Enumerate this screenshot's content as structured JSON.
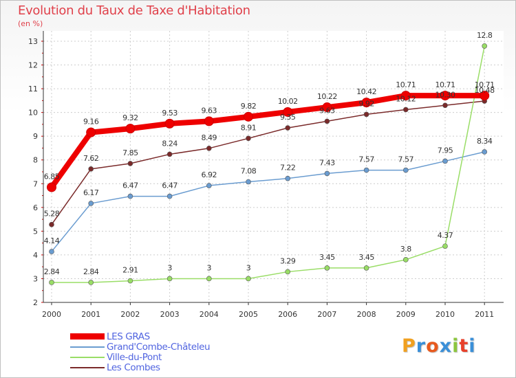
{
  "header": {
    "title": "Evolution du Taux de Taxe d'Habitation",
    "subtitle": "(en %)"
  },
  "brand": {
    "text": "Proxiti",
    "colors": [
      "#f0a020",
      "#3a8fd8",
      "#e85a1e",
      "#3a8fd8",
      "#8cc63f",
      "#e8402a",
      "#3a8fd8"
    ]
  },
  "chart_data": {
    "type": "line",
    "title": "Evolution du Taux de Taxe d'Habitation",
    "ylabel": "(en %)",
    "xlabel": "",
    "x": [
      "2000",
      "2001",
      "2002",
      "2003",
      "2004",
      "2005",
      "2006",
      "2007",
      "2008",
      "2009",
      "2010",
      "2011"
    ],
    "ylim": [
      2,
      13
    ],
    "yticks": [
      "2",
      "3",
      "4",
      "5",
      "6",
      "7",
      "8",
      "9",
      "10",
      "11",
      "12",
      "13"
    ],
    "grid": true,
    "legend_position": "bottom-left",
    "series": [
      {
        "name": "Les Combes",
        "color": "#7a2a2a",
        "values": [
          5.28,
          7.62,
          7.85,
          8.24,
          8.49,
          8.91,
          9.35,
          9.63,
          9.92,
          10.12,
          10.3,
          10.48
        ],
        "labels": [
          "5.28",
          "7.62",
          "7.85",
          "8.24",
          "8.49",
          "8.91",
          "9.35",
          "9.63",
          "9.92",
          "10.12",
          "10.30",
          "10.48"
        ]
      },
      {
        "name": "Grand'Combe-Châteleu",
        "color": "#6a9cd0",
        "values": [
          4.14,
          6.17,
          6.47,
          6.47,
          6.92,
          7.08,
          7.22,
          7.43,
          7.57,
          7.57,
          7.95,
          8.34
        ],
        "labels": [
          "4.14",
          "6.17",
          "6.47",
          "6.47",
          "6.92",
          "7.08",
          "7.22",
          "7.43",
          "7.57",
          "7.57",
          "7.95",
          "8.34"
        ]
      },
      {
        "name": "Ville-du-Pont",
        "color": "#99dd66",
        "values": [
          2.84,
          2.84,
          2.91,
          3,
          3,
          3,
          3.29,
          3.45,
          3.45,
          3.8,
          4.37,
          12.8
        ],
        "labels": [
          "2.84",
          "2.84",
          "2.91",
          "3",
          "3",
          "3",
          "3.29",
          "3.45",
          "3.45",
          "3.8",
          "4.37",
          "12.8"
        ]
      },
      {
        "name": "LES GRAS",
        "color": "#ee0000",
        "values": [
          6.85,
          9.16,
          9.32,
          9.53,
          9.63,
          9.82,
          10.02,
          10.22,
          10.42,
          10.71,
          10.71,
          10.71
        ],
        "labels": [
          "6.85",
          "9.16",
          "9.32",
          "9.53",
          "9.63",
          "9.82",
          "10.02",
          "10.22",
          "10.42",
          "10.71",
          "10.71",
          "10.71"
        ]
      }
    ]
  },
  "legend": {
    "items": [
      {
        "label": "LES GRAS",
        "color": "#ee0000",
        "thick": true
      },
      {
        "label": "Grand'Combe-Châteleu",
        "color": "#6a9cd0",
        "thick": false
      },
      {
        "label": "Ville-du-Pont",
        "color": "#99dd66",
        "thick": false
      },
      {
        "label": "Les Combes",
        "color": "#7a2a2a",
        "thick": false
      }
    ]
  }
}
